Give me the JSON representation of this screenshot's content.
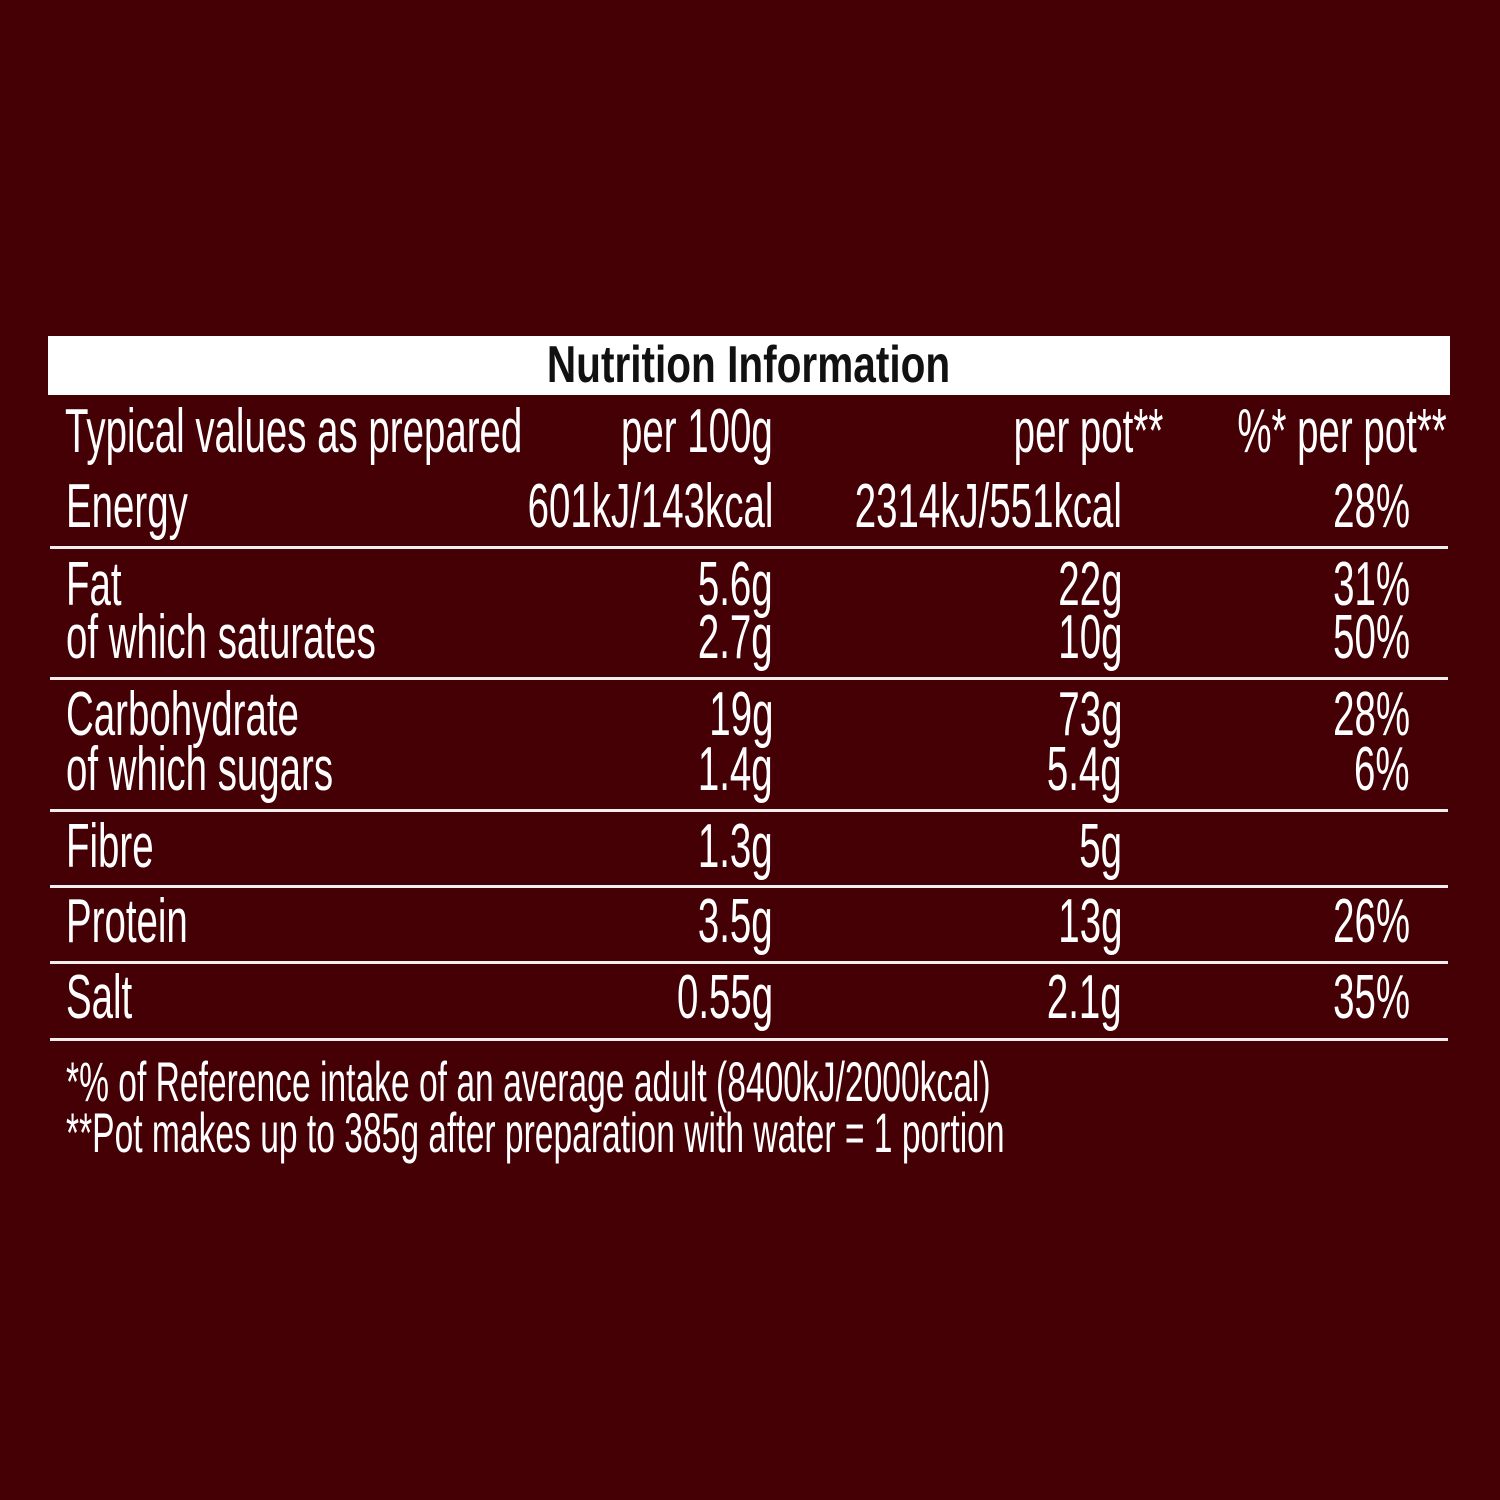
{
  "background_color": "#450006",
  "title": "Nutrition Information",
  "header": {
    "label": "Typical values as prepared",
    "col1": "per 100g",
    "col2": "per pot**",
    "col3": "%* per pot**"
  },
  "rows": [
    {
      "name": "Energy",
      "per100g": "601kJ/143kcal",
      "perpot": "2314kJ/551kcal",
      "ri": "28%"
    },
    {
      "name": "Fat",
      "per100g": "5.6g",
      "perpot": "22g",
      "ri": "31%"
    },
    {
      "name": "of which saturates",
      "per100g": "2.7g",
      "perpot": "10g",
      "ri": "50%"
    },
    {
      "name": "Carbohydrate",
      "per100g": "19g",
      "perpot": "73g",
      "ri": "28%"
    },
    {
      "name": "of which sugars",
      "per100g": "1.4g",
      "perpot": "5.4g",
      "ri": "6%"
    },
    {
      "name": "Fibre",
      "per100g": "1.3g",
      "perpot": "5g",
      "ri": ""
    },
    {
      "name": "Protein",
      "per100g": "3.5g",
      "perpot": "13g",
      "ri": "26%"
    },
    {
      "name": "Salt",
      "per100g": "0.55g",
      "perpot": "2.1g",
      "ri": "35%"
    }
  ],
  "footnotes": [
    "*% of Reference intake of an average adult (8400kJ/2000kcal)",
    "**Pot makes up to 385g after preparation with water = 1 portion"
  ]
}
